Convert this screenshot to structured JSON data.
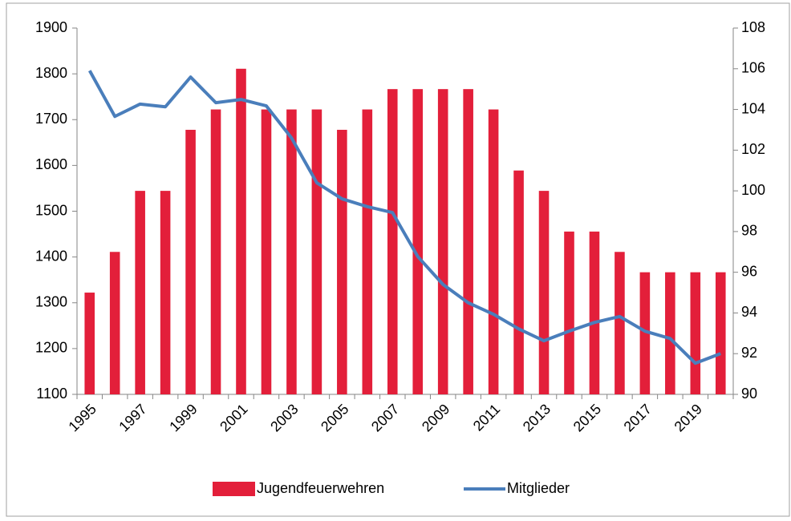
{
  "chart_data": {
    "type": "bar",
    "categories": [
      "1995",
      null,
      "1997",
      null,
      "1999",
      null,
      "2001",
      null,
      "2003",
      null,
      "2005",
      null,
      "2007",
      null,
      "2009",
      null,
      "2011",
      null,
      "2013",
      null,
      "2015",
      null,
      "2017",
      null,
      "2019",
      null
    ],
    "series": [
      {
        "name": "Jugendfeuerwehren",
        "type": "bar",
        "axis": "y2",
        "color": "#e31f3a",
        "values": [
          95,
          97,
          100,
          100,
          103,
          104,
          106,
          104,
          104,
          104,
          103,
          104,
          105,
          105,
          105,
          105,
          104,
          101,
          100,
          98,
          98,
          97,
          96,
          96,
          96,
          96
        ]
      },
      {
        "name": "Mitglieder",
        "type": "line",
        "axis": "y",
        "color": "#4a7ebb",
        "values": [
          1807,
          1707,
          1734,
          1728,
          1793,
          1737,
          1744,
          1730,
          1660,
          1562,
          1527,
          1510,
          1497,
          1401,
          1340,
          1300,
          1275,
          1243,
          1217,
          1238,
          1257,
          1270,
          1238,
          1222,
          1168,
          1189
        ]
      }
    ],
    "ylim": [
      1100,
      1900
    ],
    "yticks": [
      1100,
      1200,
      1300,
      1400,
      1500,
      1600,
      1700,
      1800,
      1900
    ],
    "y2lim": [
      90,
      108
    ],
    "y2ticks": [
      90,
      92,
      94,
      96,
      98,
      100,
      102,
      104,
      106,
      108
    ],
    "legend": "bottom"
  }
}
